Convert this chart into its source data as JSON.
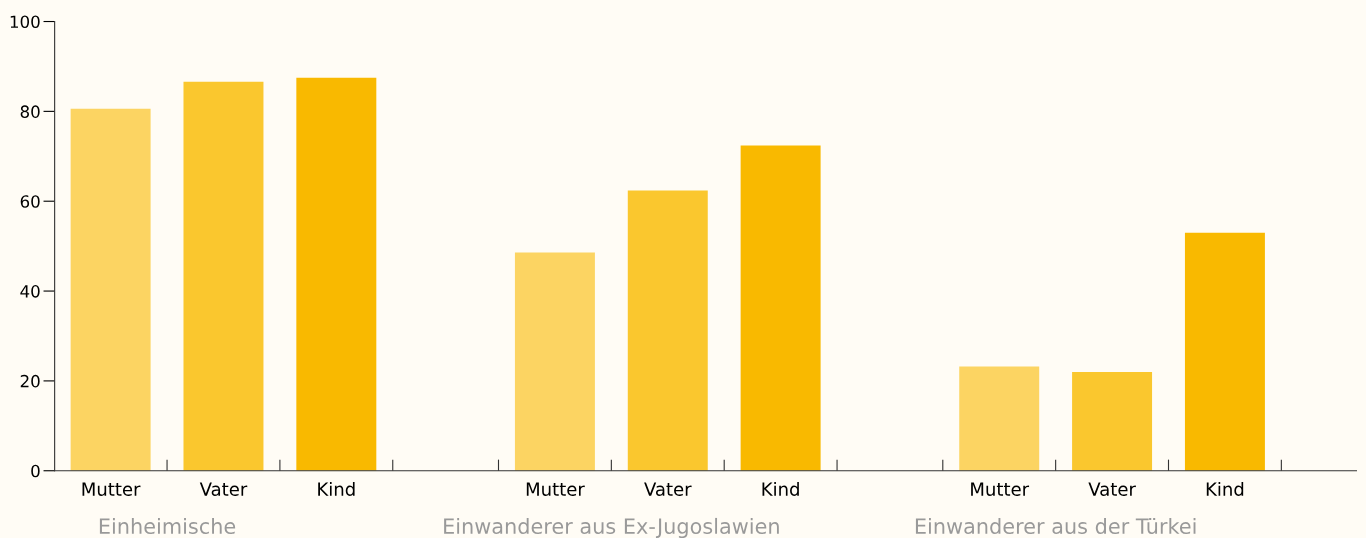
{
  "chart_data": {
    "type": "bar",
    "categories": [
      "Einheimische",
      "Einwanderer aus Ex-Jugoslawien",
      "Einwanderer aus der Türkei"
    ],
    "series": [
      {
        "name": "Mutter",
        "color": "#fcd462",
        "values": [
          80.6,
          48.6,
          23.2
        ]
      },
      {
        "name": "Vater",
        "color": "#fac72e",
        "values": [
          86.6,
          62.4,
          22.0
        ]
      },
      {
        "name": "Kind",
        "color": "#f9b900",
        "values": [
          87.5,
          72.4,
          53.0
        ]
      }
    ],
    "ylim": [
      0,
      100
    ],
    "yticks": [
      0,
      20,
      40,
      60,
      80,
      100
    ],
    "grid": false,
    "legend": false
  }
}
